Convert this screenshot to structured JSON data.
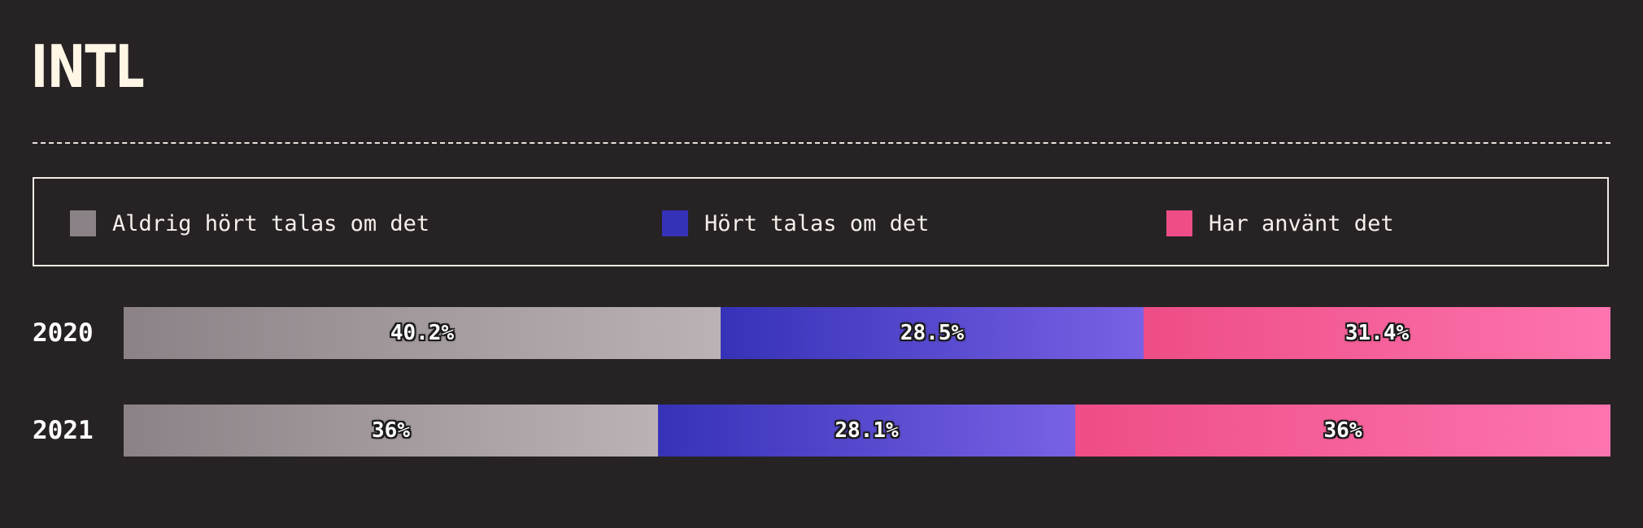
{
  "title": "INTL",
  "colors": {
    "background": "#272325",
    "never": [
      "#8b8287",
      "#bab2b4"
    ],
    "heard": [
      "#3632b8",
      "#7861e4"
    ],
    "used": [
      "#ee4d87",
      "#fd74ae"
    ]
  },
  "legend": [
    {
      "label": "Aldrig hört talas om det",
      "color": "#8b8287"
    },
    {
      "label": "Hört talas om det",
      "color": "#3632b8"
    },
    {
      "label": "Har använt det",
      "color": "#ee4d87"
    }
  ],
  "chart_data": {
    "type": "bar",
    "orientation": "horizontal",
    "stacked": true,
    "normalized": true,
    "title": "INTL",
    "categories": [
      "2020",
      "2021"
    ],
    "series": [
      {
        "name": "Aldrig hört talas om det",
        "values": [
          40.2,
          36
        ],
        "labels": [
          "40.2%",
          "36%"
        ]
      },
      {
        "name": "Hört talas om det",
        "values": [
          28.5,
          28.1
        ],
        "labels": [
          "28.5%",
          "28.1%"
        ]
      },
      {
        "name": "Har använt det",
        "values": [
          31.4,
          36
        ],
        "labels": [
          "31.4%",
          "36%"
        ]
      }
    ],
    "legend_position": "top",
    "grid": false
  }
}
